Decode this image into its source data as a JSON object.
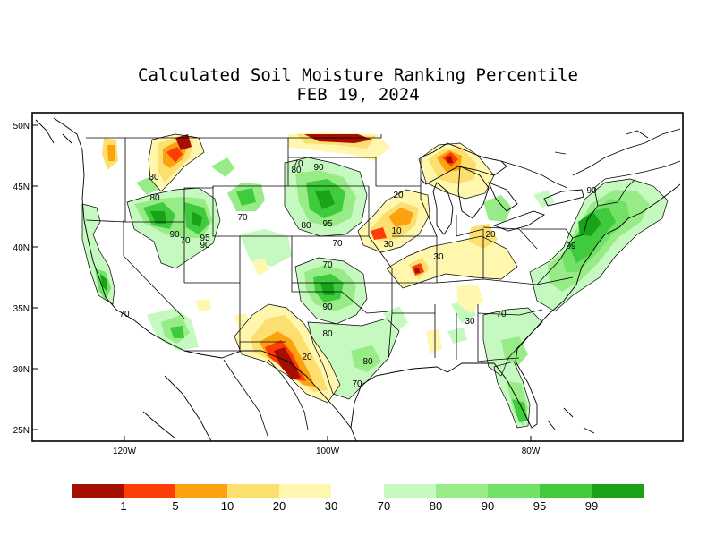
{
  "title": "Calculated Soil Moisture Ranking Percentile",
  "subtitle": "FEB 19, 2024",
  "axes": {
    "lat_ticks": [
      "50N",
      "45N",
      "40N",
      "35N",
      "30N",
      "25N"
    ],
    "lon_ticks": [
      "120W",
      "100W",
      "80W"
    ]
  },
  "contour_labels": [
    "30",
    "80",
    "90",
    "70",
    "70",
    "80",
    "95",
    "90",
    "70",
    "95",
    "90",
    "80",
    "70",
    "30",
    "10",
    "20",
    "30",
    "20",
    "70",
    "90",
    "80",
    "80",
    "70",
    "20",
    "30",
    "70",
    "70",
    "90",
    "99"
  ],
  "legend": {
    "dry_labels": [
      "1",
      "5",
      "10",
      "20",
      "30"
    ],
    "wet_labels": [
      "70",
      "80",
      "90",
      "95",
      "99"
    ],
    "dry_colors": [
      "#a50f02",
      "#fc3d08",
      "#fda20f",
      "#fddf6f",
      "#fef7ad"
    ],
    "wet_colors": [
      "#c6f9c0",
      "#98ec87",
      "#71e265",
      "#3fcb3d",
      "#19a319"
    ]
  }
}
